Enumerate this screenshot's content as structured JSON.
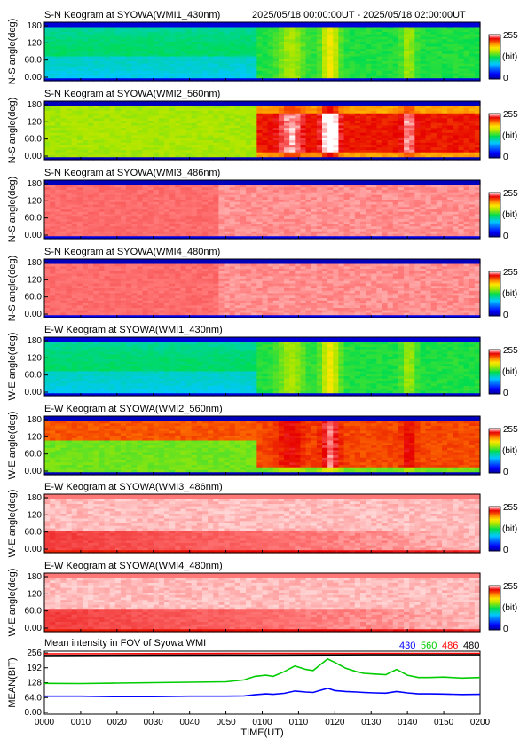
{
  "header": {
    "range": "2025/05/18 00:00:00UT - 2025/05/18 02:00:00UT"
  },
  "colorbar": {
    "max_label": "255",
    "mid_label": "(bit)",
    "min_label": "0"
  },
  "keograms": [
    {
      "title": "S-N Keogram at SYOWA(WMI1_430nm)",
      "ylabel": "N-S angle(deg)",
      "ticks": [
        "180",
        "120",
        "60.0",
        "0.00"
      ],
      "profile": "green430"
    },
    {
      "title": "S-N Keogram at SYOWA(WMI2_560nm)",
      "ylabel": "N-S angle(deg)",
      "ticks": [
        "180",
        "120",
        "60.0",
        "0.00"
      ],
      "profile": "green560"
    },
    {
      "title": "S-N Keogram at SYOWA(WMI3_486nm)",
      "ylabel": "N-S angle(deg)",
      "ticks": [
        "180",
        "120",
        "60.0",
        "0.00"
      ],
      "profile": "white"
    },
    {
      "title": "S-N Keogram at SYOWA(WMI4_480nm)",
      "ylabel": "N-S angle(deg)",
      "ticks": [
        "180",
        "120",
        "60.0",
        "0.00"
      ],
      "profile": "white"
    },
    {
      "title": "E-W Keogram at SYOWA(WMI1_430nm)",
      "ylabel": "W-E angle(deg)",
      "ticks": [
        "180",
        "120",
        "60.0",
        "0.00"
      ],
      "profile": "green430"
    },
    {
      "title": "E-W Keogram at SYOWA(WMI2_560nm)",
      "ylabel": "W-E angle(deg)",
      "ticks": [
        "180",
        "120",
        "60.0",
        "0.00"
      ],
      "profile": "red560"
    },
    {
      "title": "E-W Keogram at SYOWA(WMI3_486nm)",
      "ylabel": "W-E angle(deg)",
      "ticks": [
        "180",
        "120",
        "60.0",
        "0.00"
      ],
      "profile": "whiteLow"
    },
    {
      "title": "E-W Keogram at SYOWA(WMI4_480nm)",
      "ylabel": "W-E angle(deg)",
      "ticks": [
        "180",
        "120",
        "60.0",
        "0.00"
      ],
      "profile": "whiteLow"
    }
  ],
  "chart_data": {
    "type": "line",
    "title": "Mean intensity in FOV of Syowa WMI",
    "xlabel": "TIME(UT)",
    "ylabel": "MEAN(BIT)",
    "x": [
      "0000",
      "0010",
      "0020",
      "0030",
      "0040",
      "0050",
      "0100",
      "0110",
      "0120",
      "0130",
      "0140",
      "0150",
      "0200"
    ],
    "yticks": [
      "256",
      "192",
      "128",
      "64.0",
      "0.00"
    ],
    "ylim": [
      0,
      256
    ],
    "grid": false,
    "legend_position": "top-right",
    "series": [
      {
        "name": "430",
        "color": "#0000ff",
        "x": [
          0,
          10,
          20,
          30,
          40,
          50,
          55,
          58,
          61,
          63,
          66,
          69,
          72,
          74,
          76,
          78,
          80,
          83,
          86,
          88,
          91,
          94,
          97,
          100,
          103,
          106,
          110,
          115,
          120
        ],
        "values": [
          70,
          70,
          68,
          68,
          70,
          70,
          71,
          76,
          80,
          78,
          82,
          92,
          88,
          86,
          95,
          104,
          94,
          90,
          88,
          86,
          84,
          83,
          90,
          84,
          80,
          80,
          79,
          77,
          78
        ]
      },
      {
        "name": "560",
        "color": "#00cc00",
        "x": [
          0,
          10,
          20,
          30,
          40,
          50,
          55,
          58,
          61,
          63,
          66,
          69,
          72,
          74,
          76,
          78,
          80,
          83,
          86,
          88,
          91,
          94,
          97,
          100,
          103,
          106,
          110,
          115,
          120
        ],
        "values": [
          125,
          124,
          126,
          128,
          130,
          132,
          140,
          155,
          160,
          155,
          175,
          200,
          185,
          180,
          205,
          230,
          215,
          190,
          175,
          168,
          165,
          162,
          185,
          160,
          150,
          150,
          152,
          148,
          150
        ]
      },
      {
        "name": "486",
        "color": "#ff0000",
        "x": [
          0,
          30,
          60,
          90,
          120
        ],
        "values": [
          252,
          253,
          254,
          254,
          254
        ]
      },
      {
        "name": "480",
        "color": "#000000",
        "x": [
          0,
          30,
          60,
          90,
          120
        ],
        "values": [
          245,
          246,
          247,
          248,
          248
        ]
      }
    ]
  }
}
